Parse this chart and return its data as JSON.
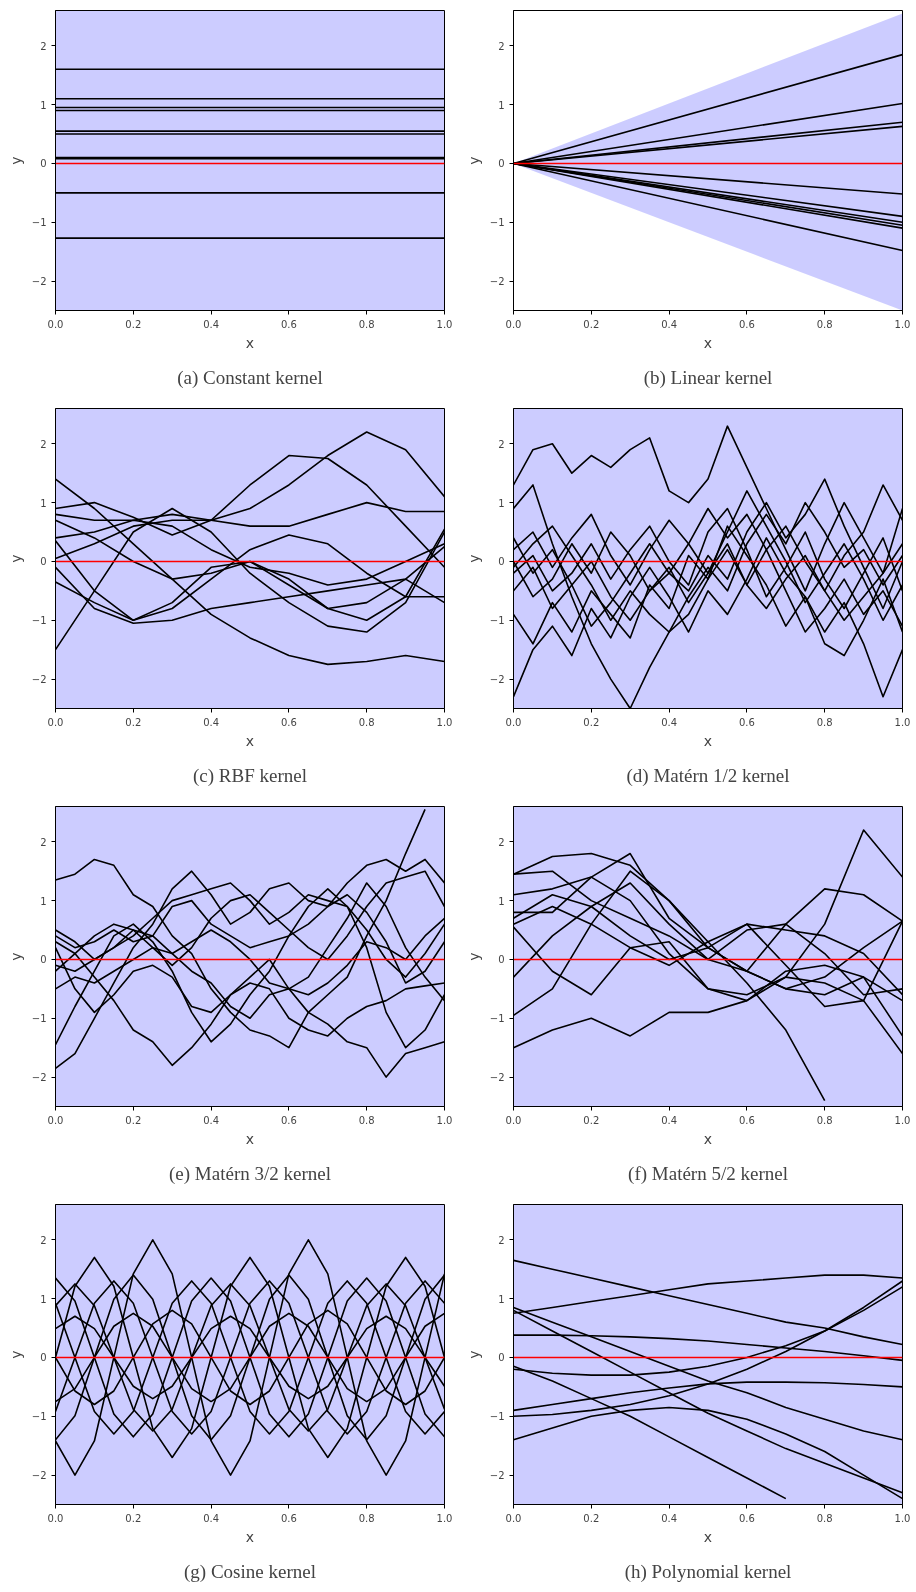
{
  "chart_data": [
    {
      "type": "line",
      "title": "(a) Constant kernel",
      "xlabel": "x",
      "ylabel": "y",
      "xlim": [
        0,
        1
      ],
      "ylim": [
        -2.5,
        2.6
      ],
      "xticks": [
        {
          "value": 0,
          "label": "0.0"
        },
        {
          "value": 0.2,
          "label": "0.2"
        },
        {
          "value": 0.4,
          "label": "0.4"
        },
        {
          "value": 0.6,
          "label": "0.6"
        },
        {
          "value": 0.8,
          "label": "0.8"
        },
        {
          "value": 1,
          "label": "1.0"
        }
      ],
      "yticks": [
        -2,
        -1,
        0,
        1,
        2
      ],
      "x": [
        0,
        1
      ],
      "series": [
        {
          "color": "#000000",
          "values": [
            1.6,
            1.6
          ]
        },
        {
          "color": "#000000",
          "values": [
            1.1,
            1.1
          ]
        },
        {
          "color": "#000000",
          "values": [
            0.95,
            0.95
          ]
        },
        {
          "color": "#000000",
          "values": [
            0.9,
            0.9
          ]
        },
        {
          "color": "#000000",
          "values": [
            0.55,
            0.55
          ]
        },
        {
          "color": "#000000",
          "values": [
            0.5,
            0.5
          ]
        },
        {
          "color": "#000000",
          "values": [
            0.1,
            0.1
          ]
        },
        {
          "color": "#000000",
          "values": [
            0.08,
            0.08
          ]
        },
        {
          "color": "#000000",
          "values": [
            -0.5,
            -0.5
          ]
        },
        {
          "color": "#000000",
          "values": [
            -1.27,
            -1.27
          ]
        },
        {
          "color": "#ff0000",
          "values": [
            0,
            0
          ]
        }
      ]
    },
    {
      "type": "line",
      "title": "(b) Linear kernel",
      "xlabel": "x",
      "ylabel": "y",
      "xlim": [
        0,
        1
      ],
      "ylim": [
        -2.5,
        2.6
      ],
      "xticks": [
        {
          "value": 0,
          "label": "0.0"
        },
        {
          "value": 0.2,
          "label": "0.2"
        },
        {
          "value": 0.4,
          "label": "0.4"
        },
        {
          "value": 0.6,
          "label": "0.6"
        },
        {
          "value": 0.8,
          "label": "0.8"
        },
        {
          "value": 1,
          "label": "1.0"
        }
      ],
      "yticks": [
        -2,
        -1,
        0,
        1,
        2
      ],
      "x": [
        0,
        1
      ],
      "series": [
        {
          "color": "#000000",
          "values": [
            0,
            1.85
          ]
        },
        {
          "color": "#000000",
          "values": [
            0,
            1.02
          ]
        },
        {
          "color": "#000000",
          "values": [
            0,
            0.7
          ]
        },
        {
          "color": "#000000",
          "values": [
            0,
            0.63
          ]
        },
        {
          "color": "#000000",
          "values": [
            0,
            -0.52
          ]
        },
        {
          "color": "#000000",
          "values": [
            0,
            -0.9
          ]
        },
        {
          "color": "#000000",
          "values": [
            0,
            -1.0
          ]
        },
        {
          "color": "#000000",
          "values": [
            0,
            -1.05
          ]
        },
        {
          "color": "#000000",
          "values": [
            0,
            -1.1
          ]
        },
        {
          "color": "#000000",
          "values": [
            0,
            -1.48
          ]
        },
        {
          "color": "#ff0000",
          "values": [
            0,
            0
          ],
          "lower": [
            0,
            -2.5
          ],
          "upper": [
            0,
            2.55
          ]
        }
      ]
    },
    {
      "type": "line",
      "title": "(c) RBF kernel",
      "xlabel": "x",
      "ylabel": "y",
      "xlim": [
        0,
        1
      ],
      "ylim": [
        -2.5,
        2.6
      ],
      "xticks": [
        {
          "value": 0,
          "label": "0.0"
        },
        {
          "value": 0.2,
          "label": "0.2"
        },
        {
          "value": 0.4,
          "label": "0.4"
        },
        {
          "value": 0.6,
          "label": "0.6"
        },
        {
          "value": 0.8,
          "label": "0.8"
        },
        {
          "value": 1,
          "label": "1.0"
        }
      ],
      "yticks": [
        -2,
        -1,
        0,
        1,
        2
      ],
      "x": [
        0,
        0.1,
        0.2,
        0.3,
        0.4,
        0.5,
        0.6,
        0.7,
        0.8,
        0.9,
        1
      ],
      "series": [
        {
          "color": "#000000",
          "values": [
            1.4,
            0.9,
            0.3,
            -0.3,
            -0.9,
            -1.3,
            -1.6,
            -1.75,
            -1.7,
            -1.6,
            -1.7
          ]
        },
        {
          "color": "#000000",
          "values": [
            -1.5,
            -0.5,
            0.5,
            0.9,
            0.5,
            -0.2,
            -0.7,
            -1.1,
            -1.2,
            -0.7,
            0.5
          ]
        },
        {
          "color": "#000000",
          "values": [
            0.9,
            1.0,
            0.75,
            0.45,
            0.7,
            1.3,
            1.8,
            1.75,
            1.3,
            0.6,
            -0.1
          ]
        },
        {
          "color": "#000000",
          "values": [
            0.05,
            0.3,
            0.6,
            0.7,
            0.7,
            0.9,
            1.3,
            1.8,
            2.2,
            1.9,
            1.1
          ]
        },
        {
          "color": "#000000",
          "values": [
            0.8,
            0.7,
            0.7,
            0.8,
            0.7,
            0.6,
            0.6,
            0.8,
            1.0,
            0.85,
            0.85
          ]
        },
        {
          "color": "#000000",
          "values": [
            0.4,
            0.5,
            0.7,
            0.6,
            0.2,
            -0.1,
            -0.2,
            -0.4,
            -0.3,
            0,
            0.3
          ]
        },
        {
          "color": "#000000",
          "values": [
            -0.35,
            -0.7,
            -1.0,
            -0.8,
            -0.3,
            0.2,
            0.45,
            0.3,
            -0.2,
            -0.6,
            -0.6
          ]
        },
        {
          "color": "#000000",
          "values": [
            -0.1,
            -0.8,
            -1.05,
            -1.0,
            -0.8,
            -0.7,
            -0.6,
            -0.5,
            -0.4,
            -0.3,
            0.25
          ]
        },
        {
          "color": "#000000",
          "values": [
            0.35,
            -0.5,
            -1.0,
            -0.7,
            -0.1,
            0.0,
            -0.3,
            -0.8,
            -1.0,
            -0.6,
            0.55
          ]
        },
        {
          "color": "#000000",
          "values": [
            0.7,
            0.4,
            0.0,
            -0.3,
            -0.2,
            0.0,
            -0.4,
            -0.8,
            -0.7,
            -0.3,
            -0.7
          ]
        },
        {
          "color": "#ff0000",
          "values": [
            0,
            0,
            0,
            0,
            0,
            0,
            0,
            0,
            0,
            0,
            0
          ]
        }
      ]
    },
    {
      "type": "line",
      "title": "(d) Matérn 1/2 kernel",
      "xlabel": "x",
      "ylabel": "y",
      "xlim": [
        0,
        1
      ],
      "ylim": [
        -2.5,
        2.6
      ],
      "xticks": [
        {
          "value": 0,
          "label": "0.0"
        },
        {
          "value": 0.2,
          "label": "0.2"
        },
        {
          "value": 0.4,
          "label": "0.4"
        },
        {
          "value": 0.6,
          "label": "0.6"
        },
        {
          "value": 0.8,
          "label": "0.8"
        },
        {
          "value": 1,
          "label": "1.0"
        }
      ],
      "yticks": [
        -2,
        -1,
        0,
        1,
        2
      ],
      "x": [
        0,
        0.05,
        0.1,
        0.15,
        0.2,
        0.25,
        0.3,
        0.35,
        0.4,
        0.45,
        0.5,
        0.55,
        0.6,
        0.65,
        0.7,
        0.75,
        0.8,
        0.85,
        0.9,
        0.95,
        1
      ],
      "series": [
        {
          "color": "#000000",
          "values": [
            1.3,
            1.9,
            2.0,
            1.5,
            1.8,
            1.6,
            1.9,
            2.1,
            1.2,
            1.0,
            1.4,
            2.3,
            1.6,
            0.9,
            0.2,
            -0.5,
            0.3,
            1.0,
            0.4,
            -0.2,
            0.9
          ]
        },
        {
          "color": "#000000",
          "values": [
            0.9,
            1.3,
            0.3,
            -0.6,
            -1.4,
            -2.0,
            -2.5,
            -1.8,
            -1.2,
            -0.9,
            -0.3,
            0.2,
            -0.4,
            -0.8,
            -0.3,
            0.1,
            -0.5,
            -1.0,
            -0.6,
            -0.2,
            0.3
          ]
        },
        {
          "color": "#000000",
          "values": [
            -0.2,
            0.1,
            -0.5,
            -0.2,
            0.3,
            -0.3,
            0.2,
            0.6,
            0.0,
            -0.4,
            0.5,
            0.9,
            0.2,
            -0.6,
            -0.1,
            0.5,
            -0.3,
            -0.8,
            -0.2,
            0.4,
            -0.5
          ]
        },
        {
          "color": "#000000",
          "values": [
            -0.9,
            -1.4,
            -0.7,
            -1.2,
            -0.5,
            -0.9,
            -1.3,
            -0.4,
            -0.8,
            0.1,
            -0.3,
            0.6,
            0.1,
            -0.4,
            -1.1,
            -0.6,
            -1.2,
            -0.7,
            -1.4,
            -2.3,
            -1.5
          ]
        },
        {
          "color": "#000000",
          "values": [
            0.2,
            0.5,
            -0.1,
            0.4,
            0.8,
            0.1,
            -0.4,
            0.2,
            0.7,
            0.3,
            -0.2,
            0.5,
            1.2,
            0.6,
            0.0,
            -0.7,
            -0.2,
            0.3,
            -0.3,
            -1.0,
            -0.4
          ]
        },
        {
          "color": "#000000",
          "values": [
            -0.5,
            -0.1,
            -0.8,
            -0.4,
            0.0,
            -0.6,
            -1.0,
            -0.5,
            -0.1,
            -0.7,
            -0.2,
            0.3,
            -0.4,
            0.2,
            -0.5,
            -1.2,
            -0.8,
            -0.3,
            -0.9,
            -0.5,
            -1.1
          ]
        },
        {
          "color": "#000000",
          "values": [
            -2.3,
            -1.5,
            -1.1,
            -1.6,
            -0.8,
            -1.3,
            -0.6,
            -0.1,
            -0.6,
            -1.2,
            -0.5,
            -0.9,
            -0.3,
            0.4,
            -0.2,
            -0.6,
            -1.4,
            -1.6,
            -1.0,
            -0.3,
            -1.2
          ]
        },
        {
          "color": "#000000",
          "values": [
            0.0,
            -0.6,
            -0.3,
            0.3,
            -0.2,
            0.5,
            0.1,
            -0.5,
            -0.2,
            0.3,
            0.9,
            0.4,
            0.8,
            0.2,
            0.6,
            0.0,
            -0.5,
            0.1,
            0.5,
            1.3,
            0.7
          ]
        },
        {
          "color": "#000000",
          "values": [
            -0.1,
            0.3,
            0.6,
            0.1,
            -0.4,
            -1.0,
            -0.5,
            -0.9,
            -1.2,
            -0.6,
            -0.1,
            -0.5,
            0.3,
            0.8,
            0.3,
            1.0,
            0.5,
            -0.1,
            0.2,
            -0.4,
            0.1
          ]
        },
        {
          "color": "#000000",
          "values": [
            0.4,
            -0.2,
            0.2,
            -0.4,
            -1.1,
            -0.7,
            -0.2,
            0.3,
            -0.2,
            -0.5,
            0.1,
            -0.3,
            0.5,
            1.0,
            0.4,
            0.8,
            1.4,
            0.6,
            -0.1,
            -0.8,
            0.0
          ]
        },
        {
          "color": "#ff0000",
          "values": [
            0,
            0,
            0,
            0,
            0,
            0,
            0,
            0,
            0,
            0,
            0,
            0,
            0,
            0,
            0,
            0,
            0,
            0,
            0,
            0,
            0
          ]
        }
      ]
    },
    {
      "type": "line",
      "title": "(e) Matérn 3/2 kernel",
      "xlabel": "x",
      "ylabel": "y",
      "xlim": [
        0,
        1
      ],
      "ylim": [
        -2.5,
        2.6
      ],
      "xticks": [
        {
          "value": 0,
          "label": "0.0"
        },
        {
          "value": 0.2,
          "label": "0.2"
        },
        {
          "value": 0.4,
          "label": "0.4"
        },
        {
          "value": 0.6,
          "label": "0.6"
        },
        {
          "value": 0.8,
          "label": "0.8"
        },
        {
          "value": 1,
          "label": "1.0"
        }
      ],
      "yticks": [
        -2,
        -1,
        0,
        1,
        2
      ],
      "x": [
        0,
        0.05,
        0.1,
        0.15,
        0.2,
        0.25,
        0.3,
        0.35,
        0.4,
        0.45,
        0.5,
        0.55,
        0.6,
        0.65,
        0.7,
        0.75,
        0.8,
        0.85,
        0.9,
        0.95,
        1
      ],
      "series": [
        {
          "color": "#000000",
          "values": [
            1.35,
            1.45,
            1.7,
            1.6,
            1.1,
            0.9,
            0.4,
            0.1,
            -0.5,
            -0.9,
            -1.2,
            -1.3,
            -1.5,
            -0.9,
            -0.6,
            -0.3,
            0.4,
            1.0,
            1.8,
            2.55,
            null
          ]
        },
        {
          "color": "#000000",
          "values": [
            -1.45,
            -0.8,
            -0.2,
            0.4,
            0.6,
            0.3,
            -0.2,
            -0.9,
            -1.4,
            -1.1,
            -0.6,
            -0.2,
            0.4,
            0.9,
            1.2,
            0.9,
            0.2,
            -0.9,
            -1.5,
            -1.2,
            -0.6
          ]
        },
        {
          "color": "#000000",
          "values": [
            -1.85,
            -1.6,
            -1.0,
            -0.4,
            0.2,
            0.6,
            1.2,
            1.5,
            1.1,
            0.6,
            0.8,
            1.2,
            1.3,
            1.0,
            0.9,
            1.3,
            1.6,
            1.7,
            1.5,
            1.7,
            1.3
          ]
        },
        {
          "color": "#000000",
          "values": [
            0.3,
            0.1,
            -0.3,
            -0.7,
            -1.2,
            -1.4,
            -1.8,
            -1.5,
            -1.1,
            -0.6,
            -0.3,
            0.0,
            -0.5,
            -0.9,
            -1.1,
            -1.4,
            -1.5,
            -2.0,
            -1.6,
            -1.5,
            -1.4
          ]
        },
        {
          "color": "#000000",
          "values": [
            0.5,
            0.3,
            0.0,
            0.2,
            0.5,
            0.4,
            0.1,
            -0.2,
            -0.4,
            -0.8,
            -1.0,
            -0.6,
            -0.5,
            -0.3,
            0.2,
            0.7,
            1.3,
            0.9,
            0.2,
            -0.3,
            -0.7
          ]
        },
        {
          "color": "#000000",
          "values": [
            -0.1,
            -0.2,
            0.0,
            0.2,
            0.4,
            0.7,
            1.0,
            1.1,
            1.2,
            1.3,
            1.0,
            0.6,
            0.8,
            1.1,
            1.0,
            0.9,
            0.5,
            0.0,
            -0.3,
            0.1,
            0.6
          ]
        },
        {
          "color": "#000000",
          "values": [
            0.2,
            -0.5,
            -0.9,
            -0.6,
            -0.2,
            -0.1,
            -0.3,
            -0.8,
            -0.9,
            -0.6,
            -0.4,
            -0.5,
            -1.0,
            -1.2,
            -1.3,
            -1.0,
            -0.8,
            -0.7,
            -0.5,
            -0.45,
            -0.4
          ]
        },
        {
          "color": "#000000",
          "values": [
            -0.2,
            0.1,
            0.4,
            0.6,
            0.5,
            0.2,
            -0.1,
            0.2,
            0.7,
            1.0,
            1.1,
            0.8,
            0.5,
            0.2,
            0.0,
            0.4,
            0.9,
            1.3,
            1.4,
            1.5,
            0.9
          ]
        },
        {
          "color": "#000000",
          "values": [
            0.4,
            0.2,
            0.3,
            0.5,
            0.3,
            0.4,
            0.9,
            1.0,
            0.6,
            0.4,
            0.2,
            0.3,
            0.4,
            0.6,
            0.9,
            1.1,
            0.8,
            0.3,
            -0.4,
            -0.2,
            0.3
          ]
        },
        {
          "color": "#000000",
          "values": [
            -0.5,
            -0.3,
            -0.4,
            -0.2,
            0.0,
            0.2,
            0.1,
            0.3,
            0.5,
            0.3,
            0.0,
            -0.4,
            -0.5,
            -0.6,
            -0.4,
            -0.1,
            0.3,
            0.2,
            0.0,
            0.4,
            0.7
          ]
        },
        {
          "color": "#ff0000",
          "values": [
            0,
            0,
            0,
            0,
            0,
            0,
            0,
            0,
            0,
            0,
            0,
            0,
            0,
            0,
            0,
            0,
            0,
            0,
            0,
            0,
            0
          ]
        }
      ]
    },
    {
      "type": "line",
      "title": "(f) Matérn 5/2 kernel",
      "xlabel": "x",
      "ylabel": "y",
      "xlim": [
        0,
        1
      ],
      "ylim": [
        -2.5,
        2.6
      ],
      "xticks": [
        {
          "value": 0,
          "label": "0.0"
        },
        {
          "value": 0.2,
          "label": "0.2"
        },
        {
          "value": 0.4,
          "label": "0.4"
        },
        {
          "value": 0.6,
          "label": "0.6"
        },
        {
          "value": 0.8,
          "label": "0.8"
        },
        {
          "value": 1,
          "label": "1.0"
        }
      ],
      "yticks": [
        -2,
        -1,
        0,
        1,
        2
      ],
      "x": [
        0,
        0.1,
        0.2,
        0.3,
        0.4,
        0.5,
        0.6,
        0.7,
        0.8,
        0.9,
        1
      ],
      "series": [
        {
          "color": "#000000",
          "values": [
            1.45,
            1.75,
            1.8,
            1.6,
            1.0,
            0.3,
            -0.4,
            -1.2,
            -2.4,
            null,
            null
          ]
        },
        {
          "color": "#000000",
          "values": [
            1.45,
            1.5,
            1.0,
            0.7,
            0.4,
            0.0,
            -0.2,
            -0.5,
            -0.3,
            0.2,
            0.65
          ]
        },
        {
          "color": "#000000",
          "values": [
            1.1,
            1.2,
            1.4,
            1.0,
            0.1,
            -0.5,
            -0.7,
            -0.3,
            0.6,
            2.2,
            1.4
          ]
        },
        {
          "color": "#000000",
          "values": [
            0.6,
            0.9,
            0.6,
            0.2,
            -0.1,
            0.3,
            0.6,
            0.5,
            0.4,
            0.1,
            -0.6
          ]
        },
        {
          "color": "#000000",
          "values": [
            -0.3,
            0.4,
            0.9,
            1.3,
            0.6,
            0.0,
            0.5,
            0.6,
            0.1,
            -0.6,
            -0.5
          ]
        },
        {
          "color": "#000000",
          "values": [
            -0.95,
            -0.5,
            0.6,
            1.5,
            1.0,
            0.2,
            -0.2,
            0.6,
            1.2,
            1.1,
            0.65
          ]
        },
        {
          "color": "#000000",
          "values": [
            -1.5,
            -1.2,
            -1.0,
            -1.3,
            -0.9,
            -0.9,
            -0.7,
            -0.2,
            -0.1,
            -0.3,
            -1.3
          ]
        },
        {
          "color": "#000000",
          "values": [
            0.55,
            -0.2,
            -0.6,
            0.2,
            0.3,
            -0.5,
            -0.6,
            -0.3,
            -0.4,
            -0.7,
            0.65
          ]
        },
        {
          "color": "#000000",
          "values": [
            0.8,
            0.8,
            1.4,
            1.8,
            0.7,
            0.2,
            0.6,
            -0.1,
            -0.8,
            -0.7,
            -1.6
          ]
        },
        {
          "color": "#000000",
          "values": [
            0.7,
            1.1,
            0.9,
            0.4,
            0.0,
            0.2,
            -0.2,
            -0.5,
            -0.6,
            -0.3,
            -0.7
          ]
        },
        {
          "color": "#ff0000",
          "values": [
            0,
            0,
            0,
            0,
            0,
            0,
            0,
            0,
            0,
            0,
            0
          ]
        }
      ]
    },
    {
      "type": "line",
      "title": "(g) Cosine kernel",
      "xlabel": "x",
      "ylabel": "y",
      "xlim": [
        0,
        1
      ],
      "ylim": [
        -2.5,
        2.6
      ],
      "xticks": [
        {
          "value": 0,
          "label": "0.0"
        },
        {
          "value": 0.2,
          "label": "0.2"
        },
        {
          "value": 0.4,
          "label": "0.4"
        },
        {
          "value": 0.6,
          "label": "0.6"
        },
        {
          "value": 0.8,
          "label": "0.8"
        },
        {
          "value": 1,
          "label": "1.0"
        }
      ],
      "yticks": [
        -2,
        -1,
        0,
        1,
        2
      ],
      "x": [
        0,
        0.05,
        0.1,
        0.15,
        0.2,
        0.25,
        0.3,
        0.35,
        0.4,
        0.45,
        0.5,
        0.55,
        0.6,
        0.65,
        0.7,
        0.75,
        0.8,
        0.85,
        0.9,
        0.95,
        1
      ],
      "series": [
        {
          "color": "#000000",
          "values": [
            -1.42,
            -2,
            -1.42,
            0,
            1.42,
            2,
            1.42,
            0,
            -1.42,
            -2,
            -1.42,
            0,
            1.42,
            2,
            1.42,
            0,
            -1.42,
            -2,
            -1.42,
            0,
            1.42
          ]
        },
        {
          "color": "#000000",
          "values": [
            0,
            1.21,
            1.7,
            1.21,
            0,
            -1.21,
            -1.7,
            -1.21,
            0,
            1.21,
            1.7,
            1.21,
            0,
            -1.21,
            -1.7,
            -1.21,
            0,
            1.21,
            1.7,
            1.21,
            0
          ]
        },
        {
          "color": "#000000",
          "values": [
            1.35,
            0.96,
            0,
            -0.96,
            -1.35,
            -0.96,
            0,
            0.96,
            1.35,
            0.96,
            0,
            -0.96,
            -1.35,
            -0.96,
            0,
            0.96,
            1.35,
            0.96,
            0,
            -0.96,
            -1.35
          ]
        },
        {
          "color": "#000000",
          "values": [
            -0.92,
            0,
            0.92,
            1.3,
            0.92,
            0,
            -0.92,
            -1.3,
            -0.92,
            0,
            0.92,
            1.3,
            0.92,
            0,
            -0.92,
            -1.3,
            -0.92,
            0,
            0.92,
            1.3,
            0.92
          ]
        },
        {
          "color": "#000000",
          "values": [
            -1.4,
            -0.99,
            0,
            0.99,
            1.4,
            0.99,
            0,
            -0.99,
            -1.4,
            -0.99,
            0,
            0.99,
            1.4,
            0.99,
            0,
            -0.99,
            -1.4,
            -0.99,
            0,
            0.99,
            1.4
          ]
        },
        {
          "color": "#000000",
          "values": [
            0,
            -0.57,
            -0.8,
            -0.57,
            0,
            0.57,
            0.8,
            0.57,
            0,
            -0.57,
            -0.8,
            -0.57,
            0,
            0.57,
            0.8,
            0.57,
            0,
            -0.57,
            -0.8,
            -0.57,
            0
          ]
        },
        {
          "color": "#000000",
          "values": [
            0.49,
            0.7,
            0.49,
            0,
            -0.49,
            -0.7,
            -0.49,
            0,
            0.49,
            0.7,
            0.49,
            0,
            -0.49,
            -0.7,
            -0.49,
            0,
            0.49,
            0.7,
            0.49,
            0,
            -0.49
          ]
        },
        {
          "color": "#000000",
          "values": [
            -0.75,
            -0.53,
            0,
            0.53,
            0.75,
            0.53,
            0,
            -0.53,
            -0.75,
            -0.53,
            0,
            0.53,
            0.75,
            0.53,
            0,
            -0.53,
            -0.75,
            -0.53,
            0,
            0.53,
            0.75
          ]
        },
        {
          "color": "#000000",
          "values": [
            0.92,
            0,
            -0.92,
            -1.3,
            -0.92,
            0,
            0.92,
            1.3,
            0.92,
            0,
            -0.92,
            -1.3,
            -0.92,
            0,
            0.92,
            1.3,
            0.92,
            0,
            -0.92,
            -1.3,
            -0.92
          ]
        },
        {
          "color": "#000000",
          "values": [
            0.88,
            1.25,
            0.88,
            0,
            -0.88,
            -1.25,
            -0.88,
            0,
            0.88,
            1.25,
            0.88,
            0,
            -0.88,
            -1.25,
            -0.88,
            0,
            0.88,
            1.25,
            0.88,
            0,
            -0.88
          ]
        },
        {
          "color": "#ff0000",
          "values": [
            0,
            0,
            0,
            0,
            0,
            0,
            0,
            0,
            0,
            0,
            0,
            0,
            0,
            0,
            0,
            0,
            0,
            0,
            0,
            0,
            0
          ]
        }
      ]
    },
    {
      "type": "line",
      "title": "(h) Polynomial kernel",
      "xlabel": "x",
      "ylabel": "y",
      "xlim": [
        0,
        1
      ],
      "ylim": [
        -2.5,
        2.6
      ],
      "xticks": [
        {
          "value": 0,
          "label": "0.0"
        },
        {
          "value": 0.2,
          "label": "0.2"
        },
        {
          "value": 0.4,
          "label": "0.4"
        },
        {
          "value": 0.6,
          "label": "0.6"
        },
        {
          "value": 0.8,
          "label": "0.8"
        },
        {
          "value": 1,
          "label": "1.0"
        }
      ],
      "yticks": [
        -2,
        -1,
        0,
        1,
        2
      ],
      "x": [
        0,
        0.1,
        0.2,
        0.3,
        0.4,
        0.5,
        0.6,
        0.7,
        0.8,
        0.9,
        1
      ],
      "series": [
        {
          "color": "#000000",
          "values": [
            1.65,
            1.5,
            1.35,
            1.2,
            1.05,
            0.9,
            0.75,
            0.6,
            0.5,
            0.35,
            0.22
          ]
        },
        {
          "color": "#000000",
          "values": [
            0.75,
            0.85,
            0.95,
            1.05,
            1.15,
            1.25,
            1.3,
            1.35,
            1.4,
            1.4,
            1.35
          ]
        },
        {
          "color": "#000000",
          "values": [
            0.85,
            0.6,
            0.35,
            0.1,
            -0.15,
            -0.4,
            -0.6,
            -0.85,
            -1.05,
            -1.25,
            -1.4
          ]
        },
        {
          "color": "#000000",
          "values": [
            0.8,
            0.45,
            0.1,
            -0.25,
            -0.6,
            -0.95,
            -1.25,
            -1.55,
            -1.8,
            -2.05,
            -2.3
          ]
        },
        {
          "color": "#000000",
          "values": [
            0.38,
            0.38,
            0.37,
            0.35,
            0.32,
            0.28,
            0.22,
            0.16,
            0.1,
            0.03,
            -0.05
          ]
        },
        {
          "color": "#000000",
          "values": [
            -0.15,
            -0.4,
            -0.7,
            -1.0,
            -1.35,
            -1.7,
            -2.05,
            -2.4,
            null,
            null,
            null
          ]
        },
        {
          "color": "#000000",
          "values": [
            -0.2,
            -0.27,
            -0.3,
            -0.3,
            -0.25,
            -0.15,
            0,
            0.2,
            0.45,
            0.8,
            1.2
          ]
        },
        {
          "color": "#000000",
          "values": [
            -0.9,
            -0.8,
            -0.7,
            -0.6,
            -0.52,
            -0.45,
            -0.42,
            -0.42,
            -0.43,
            -0.46,
            -0.5
          ]
        },
        {
          "color": "#000000",
          "values": [
            -1.0,
            -0.97,
            -0.9,
            -0.8,
            -0.65,
            -0.45,
            -0.2,
            0.1,
            0.45,
            0.85,
            1.3
          ]
        },
        {
          "color": "#000000",
          "values": [
            -1.4,
            -1.2,
            -1.0,
            -0.9,
            -0.85,
            -0.9,
            -1.05,
            -1.3,
            -1.6,
            -2.0,
            -2.4
          ]
        },
        {
          "color": "#ff0000",
          "values": [
            0,
            0,
            0,
            0,
            0,
            0,
            0,
            0,
            0,
            0,
            0
          ]
        }
      ]
    }
  ]
}
